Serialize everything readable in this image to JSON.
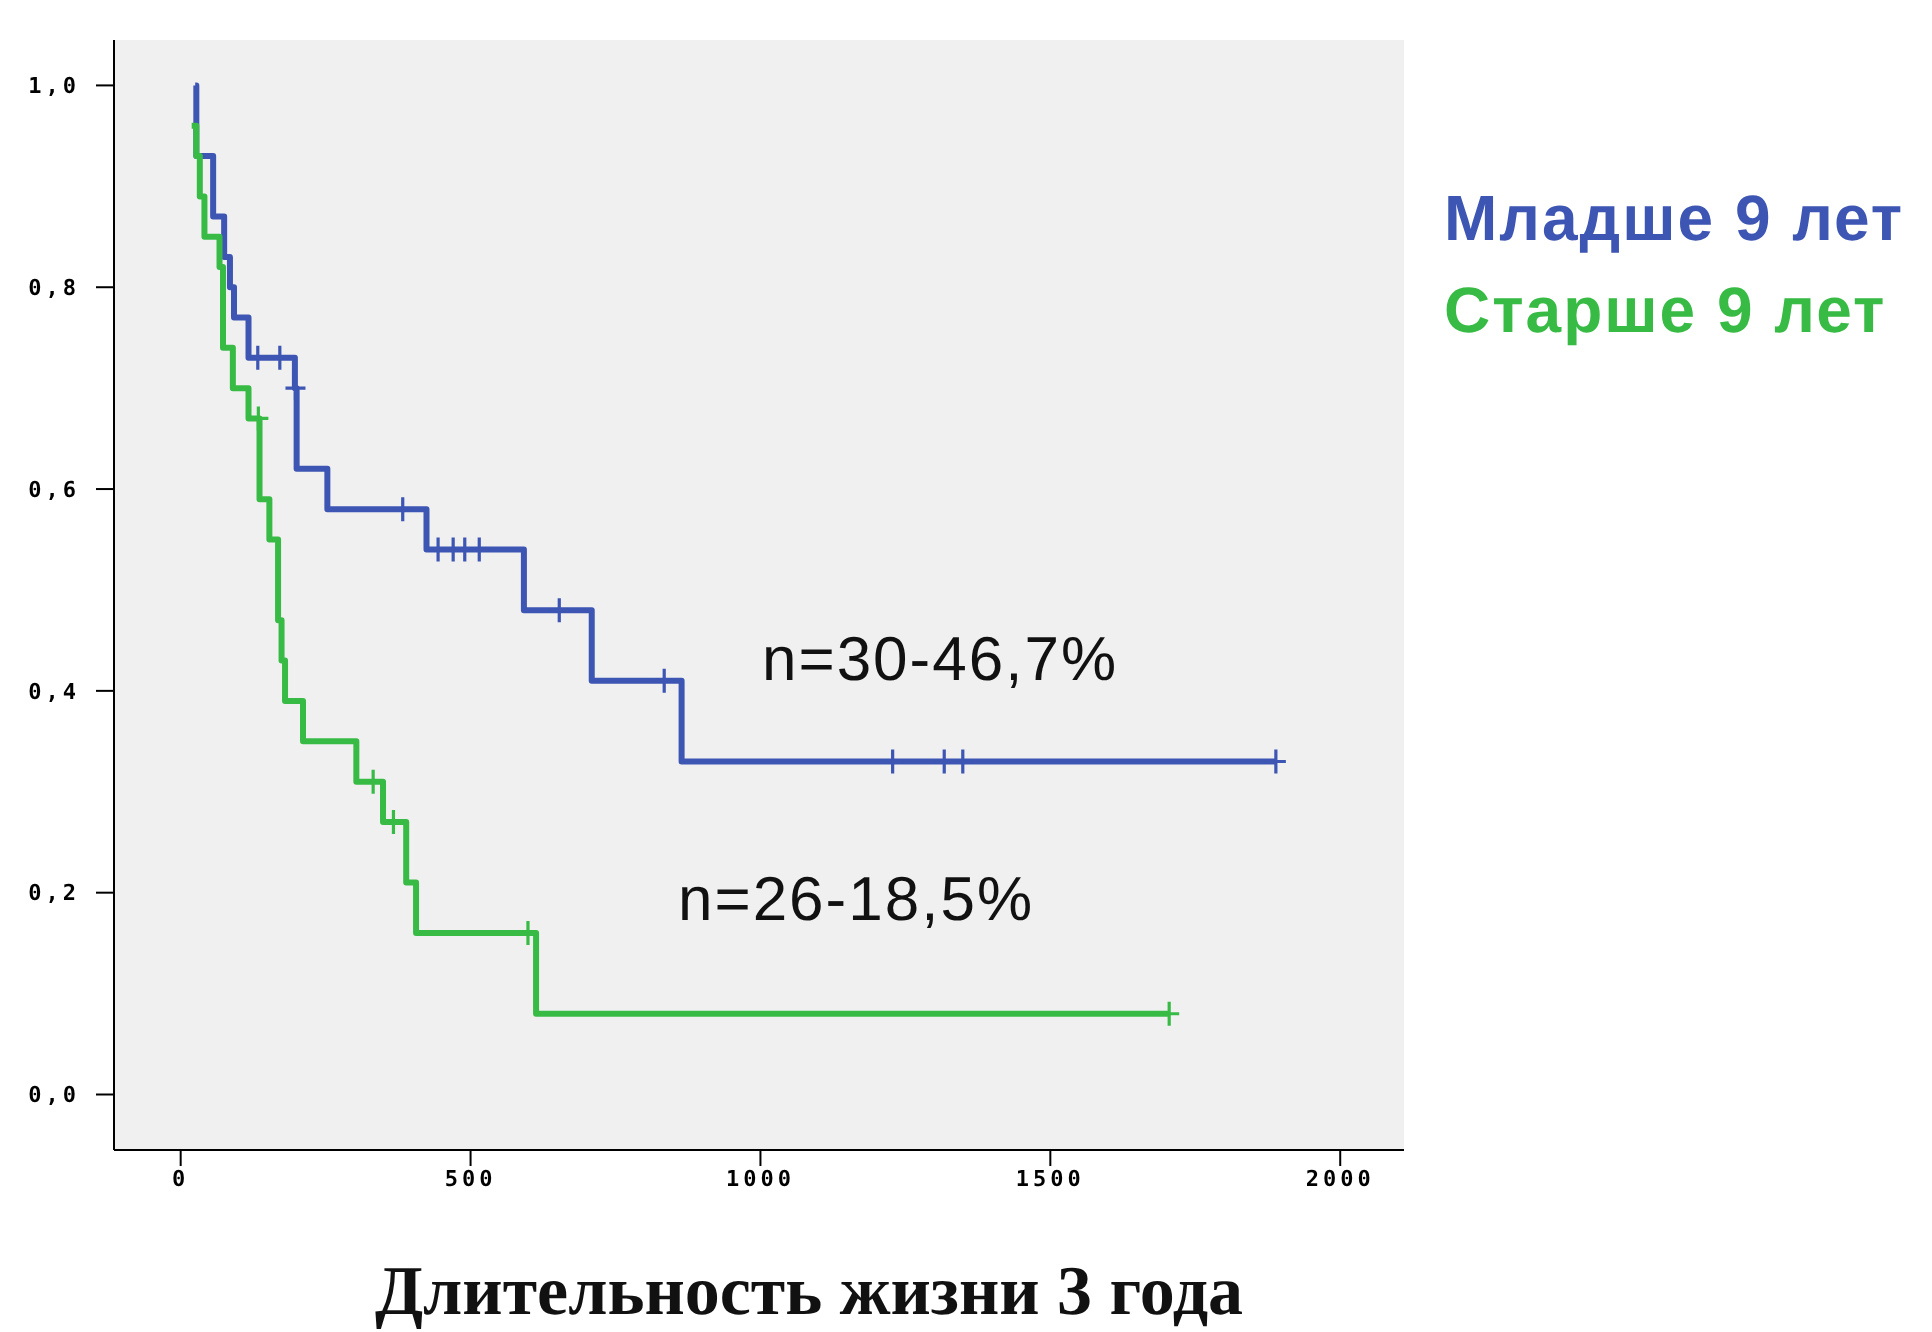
{
  "chart_data": {
    "type": "step",
    "xlabel": "Длительность жизни 3 года",
    "xlim": [
      -115,
      2110
    ],
    "xticks": [
      0,
      500,
      1000,
      1500,
      2000
    ],
    "ylim": [
      -0.055,
      1.045
    ],
    "yticks": [
      {
        "value": 0,
        "label": "0,0"
      },
      {
        "value": 0.2,
        "label": "0,2"
      },
      {
        "value": 0.4,
        "label": "0,4"
      },
      {
        "value": 0.6,
        "label": "0,6"
      },
      {
        "value": 0.8,
        "label": "0,8"
      },
      {
        "value": 1,
        "label": "1,0"
      }
    ],
    "grid": false,
    "legend": "right",
    "line_style": "solid",
    "series": [
      {
        "name": "Младше 9 лет",
        "color": "#3d55b3",
        "marker": "none",
        "x": [
          25,
          27,
          56,
          75,
          85,
          92,
          117,
          197,
          200,
          253,
          424,
          592,
          709,
          864,
          1889
        ],
        "values": [
          1.0,
          0.93,
          0.87,
          0.83,
          0.8,
          0.77,
          0.73,
          0.7,
          0.62,
          0.58,
          0.54,
          0.48,
          0.41,
          0.33,
          0.33
        ]
      },
      {
        "name": "Старше 9 лет",
        "color": "#38bb45",
        "marker": "none",
        "x": [
          19,
          27,
          33,
          41,
          67,
          73,
          90,
          117,
          136,
          153,
          168,
          174,
          180,
          211,
          303,
          349,
          389,
          406,
          613,
          1705
        ],
        "values": [
          0.96,
          0.93,
          0.89,
          0.85,
          0.82,
          0.74,
          0.7,
          0.67,
          0.59,
          0.55,
          0.47,
          0.43,
          0.39,
          0.35,
          0.31,
          0.27,
          0.21,
          0.16,
          0.08,
          0.08
        ]
      },
      {
        "type": "scatter",
        "color": "#3d55b3",
        "marker": "cross",
        "x": [
          133,
          171,
          198,
          383,
          444,
          470,
          490,
          515,
          653,
          834,
          1228,
          1317,
          1349,
          1889
        ],
        "values": [
          0.73,
          0.73,
          0.7,
          0.58,
          0.54,
          0.54,
          0.54,
          0.54,
          0.48,
          0.41,
          0.33,
          0.33,
          0.33,
          0.33
        ]
      },
      {
        "type": "scatter",
        "color": "#38bb45",
        "marker": "cross",
        "x": [
          134,
          332,
          367,
          599,
          1705
        ],
        "values": [
          0.67,
          0.31,
          0.27,
          0.16,
          0.08
        ]
      }
    ],
    "annotations": [
      "n=30-46,7%",
      "n=26-18,5%"
    ]
  }
}
